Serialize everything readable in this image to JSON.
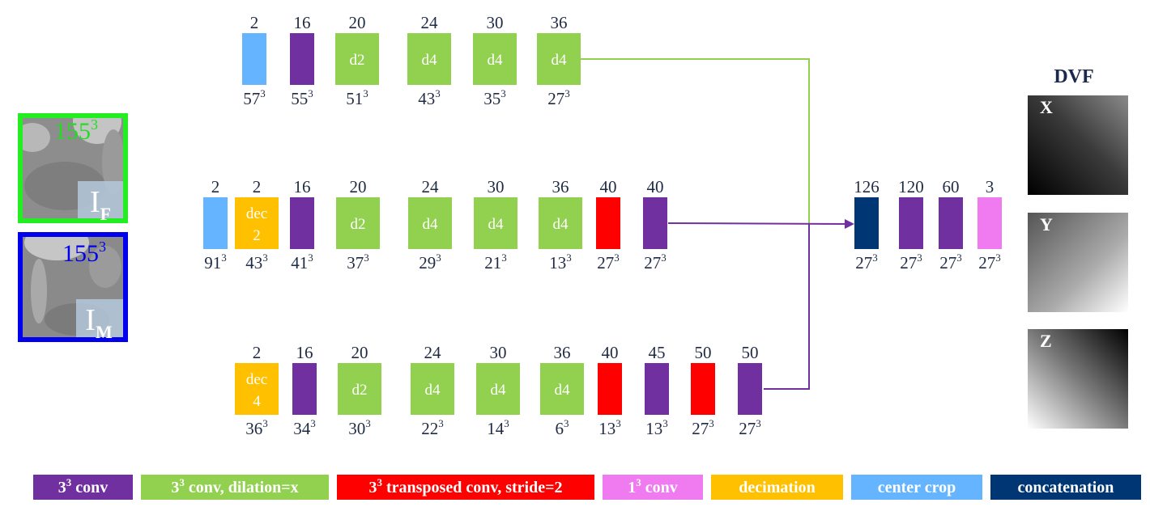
{
  "colors": {
    "conv": "#7030A0",
    "dilated_conv": "#92D050",
    "transposed_conv": "#FF0000",
    "conv1": "#F07AF0",
    "decimation": "#FFC000",
    "center_crop": "#64B4FF",
    "concatenation": "#003673",
    "fixed_frame": "#22EE22",
    "moving_frame": "#0000EE",
    "link_green": "#92D050",
    "link_purple": "#7030A0"
  },
  "inputs": [
    {
      "id": "fixed",
      "size_base": "155",
      "size_exp": "3",
      "label_base": "I",
      "label_sub": "F",
      "frame_color": "#22EE22",
      "size_color": "#22DD22"
    },
    {
      "id": "moving",
      "size_base": "155",
      "size_exp": "3",
      "label_base": "I",
      "label_sub": "M",
      "frame_color": "#0000EE",
      "size_color": "#0000EE"
    }
  ],
  "pathways": [
    {
      "id": "top",
      "blocks": [
        {
          "type": "center_crop",
          "channels": "2",
          "size": "57",
          "exp": "3",
          "inner": []
        },
        {
          "type": "conv",
          "channels": "16",
          "size": "55",
          "exp": "3",
          "inner": []
        },
        {
          "type": "dilated_conv",
          "channels": "20",
          "size": "51",
          "exp": "3",
          "inner": [
            "d2"
          ]
        },
        {
          "type": "dilated_conv",
          "channels": "24",
          "size": "43",
          "exp": "3",
          "inner": [
            "d4"
          ]
        },
        {
          "type": "dilated_conv",
          "channels": "30",
          "size": "35",
          "exp": "3",
          "inner": [
            "d4"
          ]
        },
        {
          "type": "dilated_conv",
          "channels": "36",
          "size": "27",
          "exp": "3",
          "inner": [
            "d4"
          ]
        }
      ]
    },
    {
      "id": "middle",
      "blocks": [
        {
          "type": "center_crop",
          "channels": "2",
          "size": "91",
          "exp": "3",
          "inner": []
        },
        {
          "type": "decimation",
          "channels": "2",
          "size": "43",
          "exp": "3",
          "inner": [
            "dec",
            "2"
          ]
        },
        {
          "type": "conv",
          "channels": "16",
          "size": "41",
          "exp": "3",
          "inner": []
        },
        {
          "type": "dilated_conv",
          "channels": "20",
          "size": "37",
          "exp": "3",
          "inner": [
            "d2"
          ]
        },
        {
          "type": "dilated_conv",
          "channels": "24",
          "size": "29",
          "exp": "3",
          "inner": [
            "d4"
          ]
        },
        {
          "type": "dilated_conv",
          "channels": "30",
          "size": "21",
          "exp": "3",
          "inner": [
            "d4"
          ]
        },
        {
          "type": "dilated_conv",
          "channels": "36",
          "size": "13",
          "exp": "3",
          "inner": [
            "d4"
          ]
        },
        {
          "type": "transposed_conv",
          "channels": "40",
          "size": "27",
          "exp": "3",
          "inner": []
        },
        {
          "type": "conv",
          "channels": "40",
          "size": "27",
          "exp": "3",
          "inner": []
        }
      ]
    },
    {
      "id": "bottom",
      "blocks": [
        {
          "type": "decimation",
          "channels": "2",
          "size": "36",
          "exp": "3",
          "inner": [
            "dec",
            "4"
          ]
        },
        {
          "type": "conv",
          "channels": "16",
          "size": "34",
          "exp": "3",
          "inner": []
        },
        {
          "type": "dilated_conv",
          "channels": "20",
          "size": "30",
          "exp": "3",
          "inner": [
            "d2"
          ]
        },
        {
          "type": "dilated_conv",
          "channels": "24",
          "size": "22",
          "exp": "3",
          "inner": [
            "d4"
          ]
        },
        {
          "type": "dilated_conv",
          "channels": "30",
          "size": "14",
          "exp": "3",
          "inner": [
            "d4"
          ]
        },
        {
          "type": "dilated_conv",
          "channels": "36",
          "size": "6",
          "exp": "3",
          "inner": [
            "d4"
          ]
        },
        {
          "type": "transposed_conv",
          "channels": "40",
          "size": "13",
          "exp": "3",
          "inner": []
        },
        {
          "type": "conv",
          "channels": "45",
          "size": "13",
          "exp": "3",
          "inner": []
        },
        {
          "type": "transposed_conv",
          "channels": "50",
          "size": "27",
          "exp": "3",
          "inner": []
        },
        {
          "type": "conv",
          "channels": "50",
          "size": "27",
          "exp": "3",
          "inner": []
        }
      ]
    }
  ],
  "head": {
    "blocks": [
      {
        "type": "concatenation",
        "channels": "126",
        "size": "27",
        "exp": "3"
      },
      {
        "type": "conv",
        "channels": "120",
        "size": "27",
        "exp": "3"
      },
      {
        "type": "conv",
        "channels": "60",
        "size": "27",
        "exp": "3"
      },
      {
        "type": "conv1",
        "channels": "3",
        "size": "27",
        "exp": "3"
      }
    ]
  },
  "dvf": {
    "title": "DVF",
    "panels": [
      {
        "label": "X",
        "gradient": "x"
      },
      {
        "label": "Y",
        "gradient": "y"
      },
      {
        "label": "Z",
        "gradient": "z"
      }
    ]
  },
  "legend": [
    {
      "type": "conv",
      "base": "3",
      "exp": "3",
      "text": " conv"
    },
    {
      "type": "dilated_conv",
      "base": "3",
      "exp": "3",
      "text": " conv, dilation=x"
    },
    {
      "type": "transposed_conv",
      "base": "3",
      "exp": "3",
      "text": " transposed conv, stride=2"
    },
    {
      "type": "conv1",
      "base": "1",
      "exp": "3",
      "text": " conv"
    },
    {
      "type": "decimation",
      "base": "",
      "exp": "",
      "text": "decimation"
    },
    {
      "type": "center_crop",
      "base": "",
      "exp": "",
      "text": "center crop"
    },
    {
      "type": "concatenation",
      "base": "",
      "exp": "",
      "text": "concatenation"
    }
  ]
}
